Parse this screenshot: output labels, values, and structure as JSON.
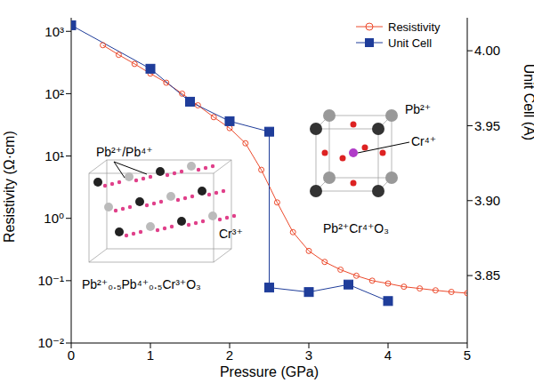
{
  "chart_data": {
    "type": "line",
    "xlabel": "Pressure (GPa)",
    "ylabel": "Resistivity (Ω·cm)",
    "y2label": "Unit Cell (Å)",
    "xlim": [
      0,
      5
    ],
    "xticks": [
      0,
      1,
      2,
      3,
      4,
      5
    ],
    "ylim": [
      0.01,
      1650
    ],
    "yticks": [
      {
        "value": 0.01,
        "label": "10⁻²"
      },
      {
        "value": 0.1,
        "label": "10⁻¹"
      },
      {
        "value": 1,
        "label": "10⁰"
      },
      {
        "value": 10,
        "label": "10¹"
      },
      {
        "value": 100,
        "label": "10²"
      },
      {
        "value": 1000,
        "label": "10³"
      }
    ],
    "log": "y",
    "y2lim": [
      3.805,
      4.022
    ],
    "y2ticks": [
      3.85,
      {
        "value": 3.9,
        "label": "3.90"
      },
      3.95,
      {
        "value": 4.0,
        "label": "4.00"
      }
    ],
    "grid": false,
    "legend": "upper right",
    "series": [
      {
        "name": "Resistivity",
        "color": "#ec4a2c",
        "marker": "circle",
        "line_style": "solid",
        "x": [
          0.4,
          0.6,
          0.8,
          1.0,
          1.2,
          1.4,
          1.6,
          1.8,
          2.0,
          2.2,
          2.4,
          2.6,
          2.8,
          3.0,
          3.2,
          3.4,
          3.6,
          3.8,
          4.0,
          4.2,
          4.4,
          4.6,
          4.8,
          5.0
        ],
        "values": [
          600,
          420,
          300,
          210,
          150,
          100,
          65,
          42,
          28,
          16,
          6,
          1.8,
          0.6,
          0.3,
          0.2,
          0.15,
          0.12,
          0.1,
          0.09,
          0.08,
          0.075,
          0.07,
          0.066,
          0.063
        ]
      },
      {
        "name": "Unit Cell",
        "color": "#1f3d9a",
        "marker": "square",
        "line_style": "solid",
        "axis": "y2",
        "x": [
          0,
          1,
          1.5,
          2,
          2.5,
          2.5,
          3,
          3.5,
          4
        ],
        "values": [
          4.017,
          3.988,
          3.966,
          3.953,
          3.946,
          3.842,
          3.839,
          3.844,
          3.833
        ]
      }
    ],
    "annotations": [
      {
        "text": "Pb²⁺/Pb⁴⁺"
      },
      {
        "text": "Cr³⁺"
      },
      {
        "text": "Pb²⁺₀.₅Pb⁴⁺₀.₅Cr³⁺O₃"
      },
      {
        "text": "Pb²⁺"
      },
      {
        "text": "Cr⁴⁺"
      },
      {
        "text": "Pb²⁺Cr⁴⁺O₃"
      }
    ]
  }
}
